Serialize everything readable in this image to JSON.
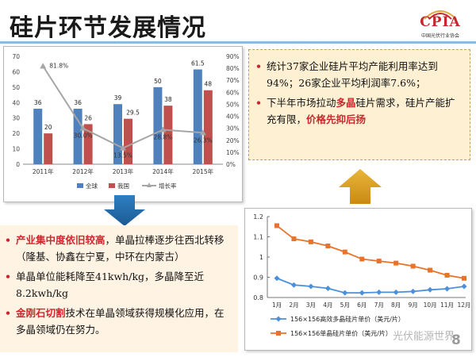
{
  "header": {
    "title": "硅片环节发展情况",
    "logo_text": "CPIA",
    "logo_sub": "中国光伏行业协会"
  },
  "right_box": {
    "bullets": [
      [
        {
          "t": "统计37家企业硅片平均产能利用率达到94%；26家企业平均利润率7.6%；",
          "hl": false
        }
      ],
      [
        {
          "t": "下半年市场拉动",
          "hl": false
        },
        {
          "t": "多晶",
          "hl": true
        },
        {
          "t": "硅片需求，硅片产能扩充有限，",
          "hl": false
        },
        {
          "t": "价格先抑后扬",
          "hl": true
        }
      ]
    ]
  },
  "left_box": {
    "bullets": [
      [
        {
          "t": "产业集中度依旧较高",
          "hl": true
        },
        {
          "t": "，单晶拉棒逐步往西北转移（隆基、协鑫在宁夏，中环在内蒙古）",
          "hl": false
        }
      ],
      [
        {
          "t": "单晶单位能耗降至41kwh/kg，多晶降至近8.2kwh/kg",
          "hl": false
        }
      ],
      [
        {
          "t": "金刚石切割",
          "hl": true
        },
        {
          "t": "技术在单晶领域获得规模化应用，在多晶领域仍在努力。",
          "hl": false
        }
      ]
    ]
  },
  "page_number": "8",
  "watermark": "光伏能源世界",
  "colors": {
    "global_bar": "#4f81bd",
    "china_bar": "#c0504d",
    "growth_line": "#a6a6a6",
    "mono_line": "#4b90d9",
    "multi_line": "#e8732a",
    "highlight": "#d0262e"
  },
  "chart_data": [
    {
      "type": "bar",
      "categories": [
        "2011年",
        "2012年",
        "2013年",
        "2014年",
        "2015年"
      ],
      "series": [
        {
          "name": "全球",
          "values": [
            36,
            36,
            39,
            50,
            61.5
          ],
          "labels": [
            "36",
            "36",
            "39",
            "50",
            "61.5"
          ]
        },
        {
          "name": "我国",
          "values": [
            20,
            26,
            29.5,
            38,
            48
          ],
          "labels": [
            "20",
            "26",
            "29.5",
            "38",
            "48"
          ]
        },
        {
          "name": "增长率",
          "values": [
            81.8,
            30.0,
            13.5,
            28.8,
            26.3
          ],
          "labels": [
            "81.8%",
            "30.0%",
            "13.5%",
            "28.8%",
            "26.3%"
          ],
          "axis": "right"
        }
      ],
      "ylim": [
        0,
        70
      ],
      "yticks": [
        "0",
        "10",
        "20",
        "30",
        "40",
        "50",
        "60",
        "70"
      ],
      "y2lim": [
        0,
        90
      ],
      "y2ticks": [
        "0%",
        "10%",
        "20%",
        "30%",
        "40%",
        "50%",
        "60%",
        "70%",
        "80%",
        "90%"
      ],
      "legend": "bottom"
    },
    {
      "type": "line",
      "x": [
        "1月",
        "2月",
        "3月",
        "4月",
        "5月",
        "6月",
        "7月",
        "8月",
        "9月",
        "10月",
        "11月",
        "12月"
      ],
      "series": [
        {
          "name": "156×156高效多晶硅片单价（美元/片）",
          "values": [
            0.895,
            0.862,
            0.855,
            0.845,
            0.823,
            0.823,
            0.826,
            0.826,
            0.83,
            0.838,
            0.843,
            0.855
          ]
        },
        {
          "name": "156×156单晶硅片单价（美元/片）",
          "values": [
            1.155,
            1.09,
            1.075,
            1.055,
            1.025,
            0.99,
            0.98,
            0.97,
            0.955,
            0.935,
            0.91,
            0.895
          ]
        }
      ],
      "ylim": [
        0.8,
        1.2
      ],
      "yticks": [
        "0.8",
        "0.9",
        "1",
        "1.1",
        "1.2"
      ],
      "legend": "bottom"
    }
  ]
}
